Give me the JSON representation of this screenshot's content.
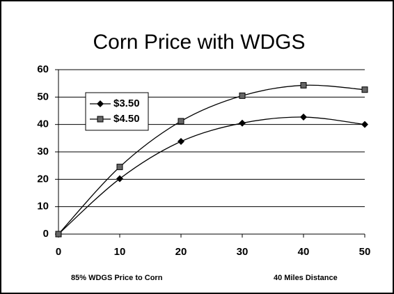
{
  "chart_data": {
    "type": "line",
    "title": "Corn Price with WDGS",
    "x": [
      0,
      10,
      20,
      30,
      40,
      50
    ],
    "series": [
      {
        "name": "$3.50",
        "color": "#000000",
        "marker": "diamond",
        "values": [
          0,
          20.2,
          33.8,
          40.5,
          42.7,
          40
        ]
      },
      {
        "name": "$4.50",
        "color": "#000000",
        "marker": "square",
        "values": [
          0,
          24.5,
          41.2,
          50.5,
          54.3,
          52.7
        ]
      }
    ],
    "xlim": [
      0,
      50
    ],
    "xticks": [
      0,
      10,
      20,
      30,
      40,
      50
    ],
    "ylim": [
      0,
      60
    ],
    "yticks": [
      0,
      10,
      20,
      30,
      40,
      50,
      60
    ],
    "grid": true,
    "smooth": true,
    "legend": "upper left",
    "annotations": [
      "85% WDGS Price to Corn",
      "40 Miles Distance"
    ]
  }
}
